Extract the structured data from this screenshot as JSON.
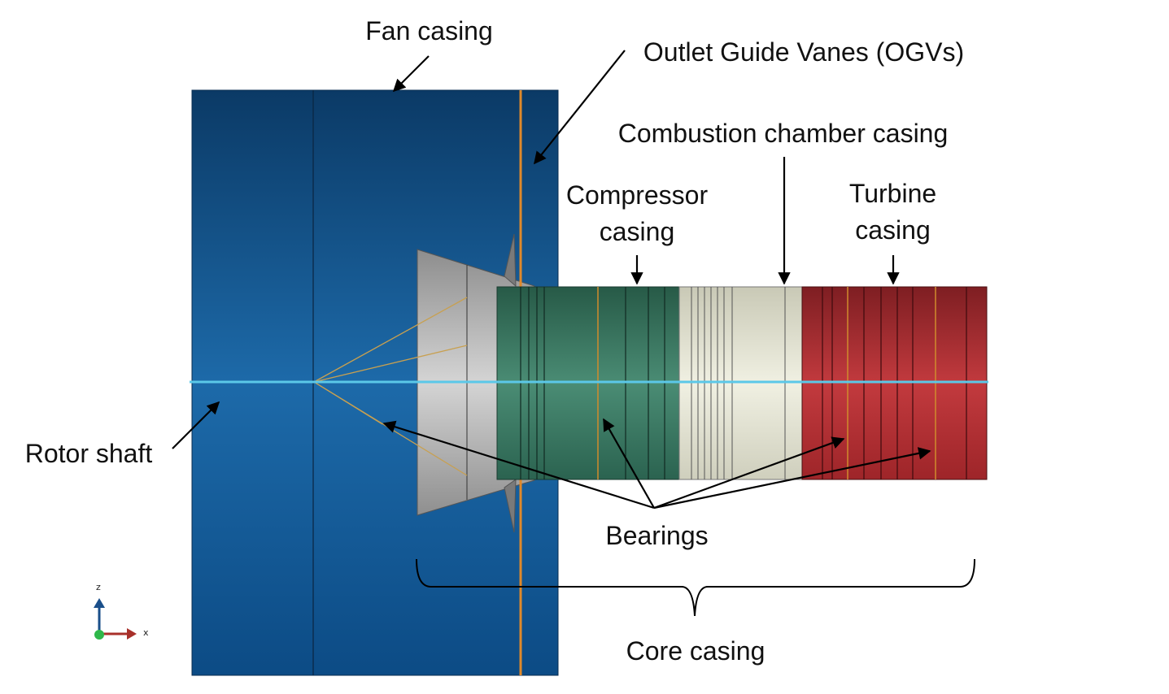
{
  "labels": {
    "fan_casing": "Fan casing",
    "ogvs": "Outlet Guide Vanes (OGVs)",
    "combustion": "Combustion chamber casing",
    "compressor_1": "Compressor",
    "compressor_2": "casing",
    "turbine_1": "Turbine",
    "turbine_2": "casing",
    "rotor_shaft": "Rotor shaft",
    "bearings": "Bearings",
    "core_casing": "Core casing"
  },
  "triad": {
    "z": "z",
    "x": "x"
  },
  "colors": {
    "fan": "#0d4c85",
    "compressor": "#2e6b55",
    "combustion": "#dcdccb",
    "turbine": "#a3262a",
    "shaft": "#5bc8e8",
    "ogv": "#e0892a",
    "cone": "#a8a8a8"
  }
}
